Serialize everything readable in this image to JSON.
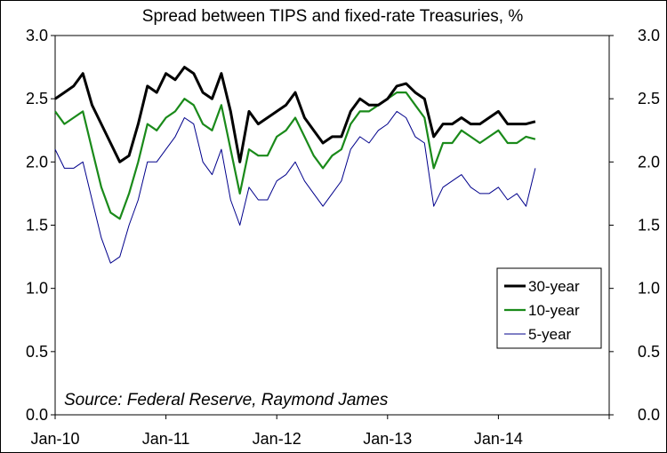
{
  "chart_data": {
    "type": "line",
    "title": "Spread between TIPS and fixed-rate Treasuries, %",
    "annotation": "Source: Federal Reserve, Raymond James",
    "x_ticks": [
      "Jan-10",
      "Jan-11",
      "Jan-12",
      "Jan-13",
      "Jan-14"
    ],
    "y_ticks": [
      "0.0",
      "0.5",
      "1.0",
      "1.5",
      "2.0",
      "2.5",
      "3.0"
    ],
    "ylim": [
      0,
      3
    ],
    "xlim": [
      "2010-01",
      "2014-12"
    ],
    "grid": false,
    "legend_position": "right-middle",
    "x": [
      "2010-01",
      "2010-02",
      "2010-03",
      "2010-04",
      "2010-05",
      "2010-06",
      "2010-07",
      "2010-08",
      "2010-09",
      "2010-10",
      "2010-11",
      "2010-12",
      "2011-01",
      "2011-02",
      "2011-03",
      "2011-04",
      "2011-05",
      "2011-06",
      "2011-07",
      "2011-08",
      "2011-09",
      "2011-10",
      "2011-11",
      "2011-12",
      "2012-01",
      "2012-02",
      "2012-03",
      "2012-04",
      "2012-05",
      "2012-06",
      "2012-07",
      "2012-08",
      "2012-09",
      "2012-10",
      "2012-11",
      "2012-12",
      "2013-01",
      "2013-02",
      "2013-03",
      "2013-04",
      "2013-05",
      "2013-06",
      "2013-07",
      "2013-08",
      "2013-09",
      "2013-10",
      "2013-11",
      "2013-12",
      "2014-01",
      "2014-02",
      "2014-03",
      "2014-04",
      "2014-05"
    ],
    "series": [
      {
        "name": "30-year",
        "color": "#000000",
        "values": [
          2.5,
          2.55,
          2.6,
          2.7,
          2.45,
          2.3,
          2.15,
          2.0,
          2.05,
          2.3,
          2.6,
          2.55,
          2.7,
          2.65,
          2.75,
          2.7,
          2.55,
          2.5,
          2.7,
          2.4,
          2.0,
          2.4,
          2.3,
          2.35,
          2.4,
          2.45,
          2.55,
          2.35,
          2.25,
          2.15,
          2.2,
          2.2,
          2.4,
          2.5,
          2.45,
          2.45,
          2.5,
          2.6,
          2.62,
          2.55,
          2.5,
          2.2,
          2.3,
          2.3,
          2.35,
          2.3,
          2.3,
          2.35,
          2.4,
          2.3,
          2.3,
          2.3,
          2.32
        ]
      },
      {
        "name": "10-year",
        "color": "#1a8a1a",
        "values": [
          2.4,
          2.3,
          2.35,
          2.4,
          2.1,
          1.8,
          1.6,
          1.55,
          1.75,
          2.0,
          2.3,
          2.25,
          2.35,
          2.4,
          2.5,
          2.45,
          2.3,
          2.25,
          2.45,
          2.1,
          1.75,
          2.1,
          2.05,
          2.05,
          2.2,
          2.25,
          2.35,
          2.2,
          2.05,
          1.95,
          2.05,
          2.1,
          2.3,
          2.4,
          2.4,
          2.45,
          2.5,
          2.55,
          2.55,
          2.45,
          2.35,
          1.95,
          2.15,
          2.15,
          2.25,
          2.2,
          2.15,
          2.2,
          2.25,
          2.15,
          2.15,
          2.2,
          2.18
        ]
      },
      {
        "name": "5-year",
        "color": "#00008b",
        "values": [
          2.1,
          1.95,
          1.95,
          2.0,
          1.7,
          1.4,
          1.2,
          1.25,
          1.5,
          1.7,
          2.0,
          2.0,
          2.1,
          2.2,
          2.35,
          2.3,
          2.0,
          1.9,
          2.1,
          1.7,
          1.5,
          1.8,
          1.7,
          1.7,
          1.85,
          1.9,
          2.0,
          1.85,
          1.75,
          1.65,
          1.75,
          1.85,
          2.1,
          2.2,
          2.15,
          2.25,
          2.3,
          2.4,
          2.35,
          2.2,
          2.15,
          1.65,
          1.8,
          1.85,
          1.9,
          1.8,
          1.75,
          1.75,
          1.8,
          1.7,
          1.75,
          1.65,
          1.95
        ]
      }
    ]
  }
}
